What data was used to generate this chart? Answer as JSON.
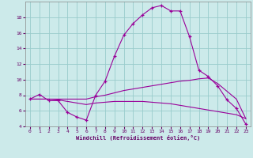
{
  "xlabel": "Windchill (Refroidissement éolien,°C)",
  "x": [
    0,
    1,
    2,
    3,
    4,
    5,
    6,
    7,
    8,
    9,
    10,
    11,
    12,
    13,
    14,
    15,
    16,
    17,
    18,
    19,
    20,
    21,
    22,
    23
  ],
  "line1": [
    7.5,
    8.1,
    7.3,
    7.3,
    5.8,
    5.2,
    4.8,
    8.0,
    9.8,
    13.0,
    15.7,
    17.2,
    18.3,
    19.2,
    19.5,
    18.8,
    18.8,
    15.5,
    11.2,
    10.4,
    9.2,
    7.4,
    6.3,
    4.3
  ],
  "line2": [
    7.5,
    7.5,
    7.5,
    7.5,
    7.5,
    7.5,
    7.5,
    7.8,
    8.0,
    8.3,
    8.6,
    8.8,
    9.0,
    9.2,
    9.4,
    9.6,
    9.8,
    9.9,
    10.1,
    10.2,
    9.5,
    8.5,
    7.5,
    5.0
  ],
  "line3": [
    7.5,
    7.5,
    7.5,
    7.4,
    7.2,
    7.0,
    6.8,
    7.0,
    7.1,
    7.2,
    7.2,
    7.2,
    7.2,
    7.1,
    7.0,
    6.9,
    6.7,
    6.5,
    6.3,
    6.1,
    5.9,
    5.7,
    5.5,
    5.0
  ],
  "line_color": "#990099",
  "bg_color": "#cceaea",
  "grid_color": "#99cccc",
  "ylim": [
    4,
    20
  ],
  "yticks": [
    4,
    6,
    8,
    10,
    12,
    14,
    16,
    18
  ],
  "xticks": [
    0,
    1,
    2,
    3,
    4,
    5,
    6,
    7,
    8,
    9,
    10,
    11,
    12,
    13,
    14,
    15,
    16,
    17,
    18,
    19,
    20,
    21,
    22,
    23
  ]
}
